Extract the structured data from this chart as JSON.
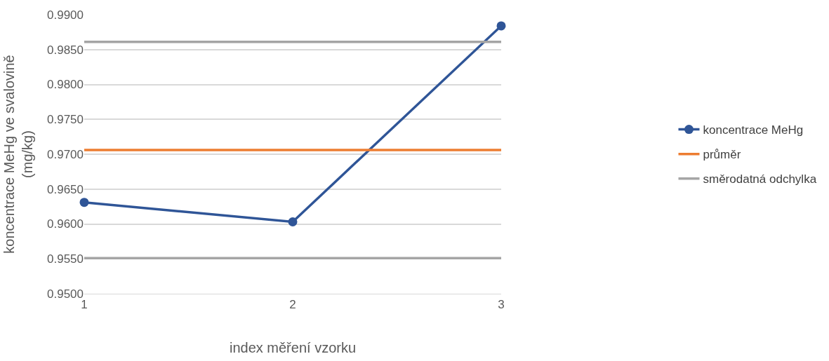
{
  "chart_data": {
    "type": "line",
    "xlabel": "index měření vzorku",
    "ylabel": "koncentrace MeHg ve svalovině (mg/kg)",
    "categories": [
      "1",
      "2",
      "3"
    ],
    "series": [
      {
        "name": "koncentrace MeHg",
        "color": "#2f5597",
        "values": [
          0.9631,
          0.9603,
          0.9884
        ],
        "marker": "circle"
      },
      {
        "name": "průměr",
        "color": "#ed7d31",
        "values": [
          0.9706,
          0.9706,
          0.9706
        ],
        "marker": "none"
      },
      {
        "name": "směrodatná odchylka",
        "color": "#a5a5a5",
        "values": [
          0.9861,
          0.9861,
          0.9861
        ],
        "marker": "none"
      },
      {
        "color": "#a5a5a5",
        "values": [
          0.9551,
          0.9551,
          0.9551
        ],
        "marker": "none"
      }
    ],
    "ylim": [
      0.95,
      0.99
    ],
    "yticks": [
      {
        "value": 0.95,
        "label": "0.9500"
      },
      {
        "value": 0.955,
        "label": "0.9550"
      },
      {
        "value": 0.96,
        "label": "0.9600"
      },
      {
        "value": 0.965,
        "label": "0.9650"
      },
      {
        "value": 0.97,
        "label": "0.9700"
      },
      {
        "value": 0.975,
        "label": "0.9750"
      },
      {
        "value": 0.98,
        "label": "0.9800"
      },
      {
        "value": 0.985,
        "label": "0.9850"
      },
      {
        "value": 0.99,
        "label": "0.9900"
      }
    ],
    "grid": "y",
    "legend": "right",
    "line_style": "solid"
  }
}
